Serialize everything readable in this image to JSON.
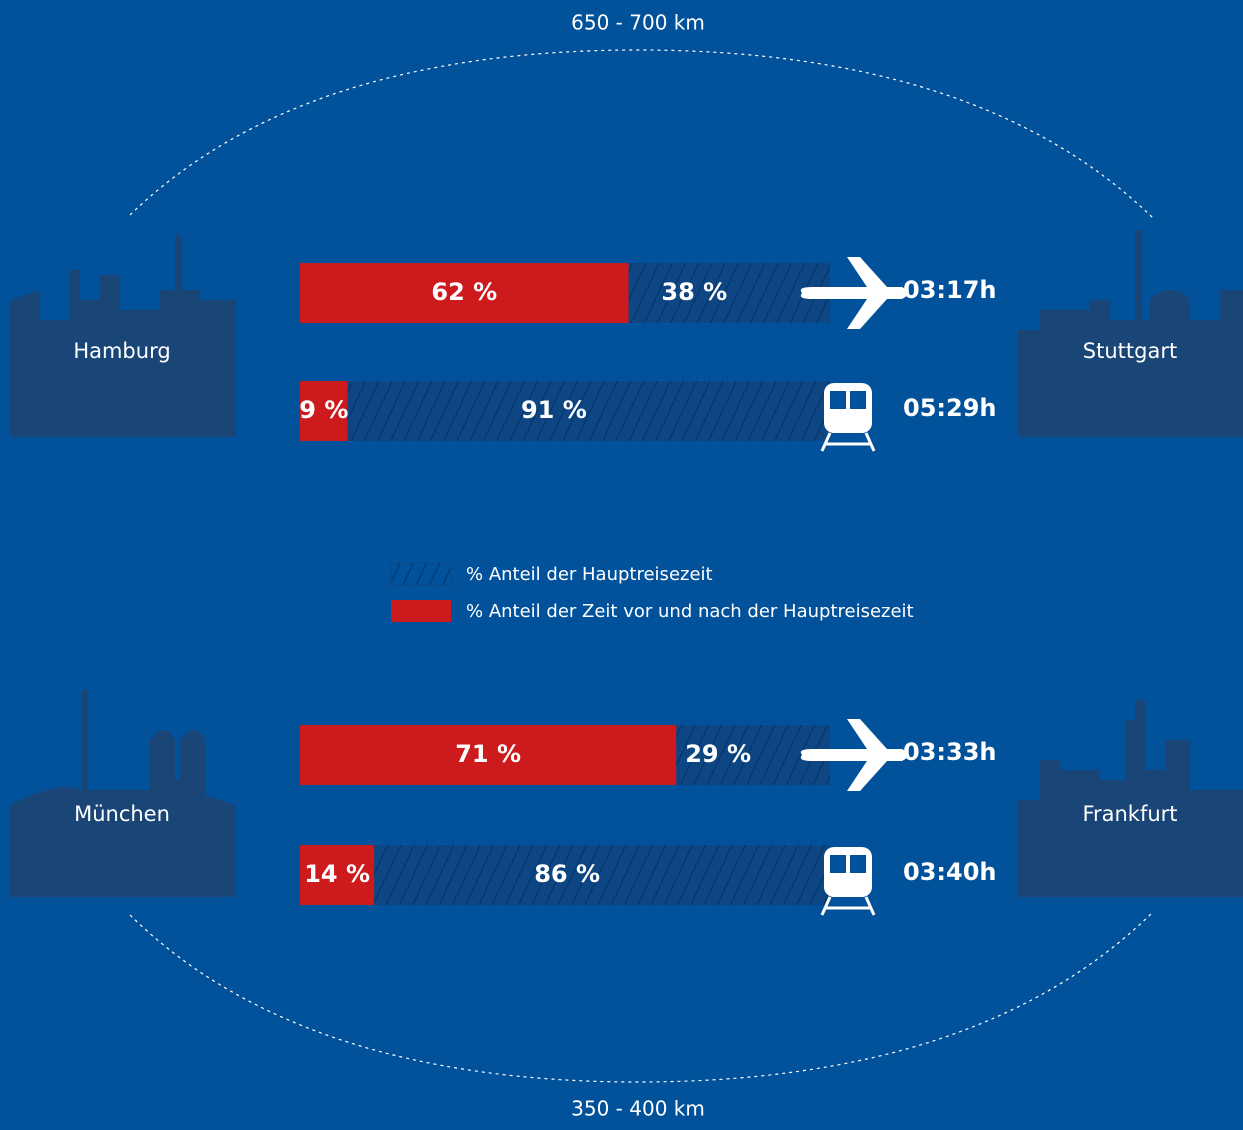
{
  "chart_data": [
    {
      "type": "bar",
      "stacked": true,
      "orientation": "horizontal",
      "title": "650 - 700 km",
      "cities": [
        "Hamburg",
        "Stuttgart"
      ],
      "times": [
        "03:17h",
        "05:29h"
      ],
      "series": [
        {
          "name": "% Anteil der Zeit vor und nach der Hauptreisezeit",
          "color": "#cc1a1d",
          "values": [
            62,
            9
          ],
          "value_labels": [
            "62 %",
            "9 %"
          ]
        },
        {
          "name": "% Anteil der Hauptreisezeit",
          "color": "#0d4683",
          "values": [
            38,
            91
          ],
          "value_labels": [
            "38 %",
            "91 %"
          ]
        }
      ]
    },
    {
      "type": "bar",
      "stacked": true,
      "orientation": "horizontal",
      "title": "350 - 400 km",
      "cities": [
        "München",
        "Frankfurt"
      ],
      "times": [
        "03:33h",
        "03:40h"
      ],
      "series": [
        {
          "color": "#cc1a1d",
          "values": [
            71,
            14
          ],
          "value_labels": [
            "71 %",
            "14 %"
          ]
        },
        {
          "color": "#0d4683",
          "values": [
            29,
            86
          ],
          "value_labels": [
            "29 %",
            "86 %"
          ]
        }
      ]
    }
  ]
}
